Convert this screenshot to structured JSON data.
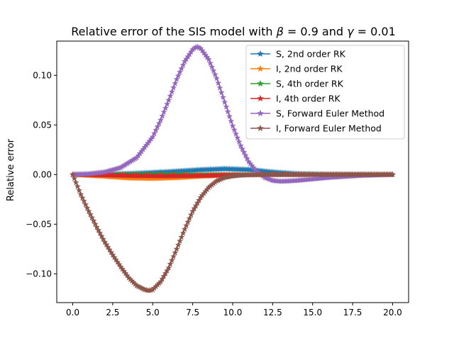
{
  "chart_data": {
    "type": "line",
    "title": "Relative error of the SIS model with β = 0.9 and  γ = 0.01",
    "title_parts": {
      "pre": "Relative error of the SIS model with ",
      "beta": "β",
      "mid": " = 0.9 and  ",
      "gamma": "γ",
      "post": " = 0.01"
    },
    "xlabel": "",
    "ylabel": "Relative error",
    "xlim": [
      -1.0,
      21.0
    ],
    "ylim": [
      -0.129,
      0.1345
    ],
    "xticks": [
      0.0,
      2.5,
      5.0,
      7.5,
      10.0,
      12.5,
      15.0,
      17.5,
      20.0
    ],
    "xtick_labels": [
      "0.0",
      "2.5",
      "5.0",
      "7.5",
      "10.0",
      "12.5",
      "15.0",
      "17.5",
      "20.0"
    ],
    "yticks": [
      -0.1,
      -0.05,
      0.0,
      0.05,
      0.1
    ],
    "ytick_labels": [
      "−0.10",
      "−0.05",
      "0.00",
      "0.05",
      "0.10"
    ],
    "grid": false,
    "legend_position": "top-right",
    "marker": "star",
    "series": [
      {
        "name": "S, 2nd order RK",
        "color": "#1f77b4",
        "x": [
          0,
          2,
          4,
          6,
          8,
          9.5,
          11,
          12.5,
          14,
          16,
          18,
          20
        ],
        "y": [
          0,
          0.0002,
          0.0012,
          0.0028,
          0.0048,
          0.0058,
          0.005,
          0.0025,
          0.0008,
          0.0002,
          0.0001,
          0
        ]
      },
      {
        "name": "I, 2nd order RK",
        "color": "#ff7f0e",
        "x": [
          0,
          2,
          3.5,
          5,
          6.5,
          8,
          9.5,
          11,
          12.5,
          14,
          16,
          18,
          20
        ],
        "y": [
          0,
          -0.0018,
          -0.0035,
          -0.004,
          -0.0032,
          -0.0018,
          -0.0008,
          -0.0003,
          -0.0001,
          0,
          0,
          0,
          0
        ]
      },
      {
        "name": "S, 4th order RK",
        "color": "#2ca02c",
        "x": [
          0,
          5,
          10,
          15,
          20
        ],
        "y": [
          0,
          0,
          0,
          0,
          0
        ]
      },
      {
        "name": "I, 4th order RK",
        "color": "#d62728",
        "x": [
          0,
          2,
          4,
          6,
          8,
          10,
          12,
          14,
          16,
          18,
          20
        ],
        "y": [
          0,
          -0.0005,
          -0.0012,
          -0.0014,
          -0.001,
          -0.0004,
          -0.0001,
          0,
          0,
          0,
          0
        ]
      },
      {
        "name": "S, Forward Euler Method",
        "color": "#9467bd",
        "x": [
          0,
          1,
          2,
          3,
          4,
          5,
          5.5,
          6,
          6.5,
          7,
          7.5,
          7.75,
          8,
          8.5,
          9,
          9.5,
          10,
          10.5,
          11,
          11.5,
          12,
          12.5,
          13,
          13.5,
          14,
          15,
          16,
          17,
          18,
          19,
          20
        ],
        "y": [
          0,
          0.0007,
          0.0025,
          0.007,
          0.017,
          0.038,
          0.055,
          0.075,
          0.096,
          0.114,
          0.126,
          0.129,
          0.127,
          0.116,
          0.097,
          0.073,
          0.049,
          0.029,
          0.013,
          0.003,
          -0.003,
          -0.006,
          -0.0068,
          -0.0065,
          -0.006,
          -0.0045,
          -0.003,
          -0.002,
          -0.001,
          -0.0005,
          0
        ]
      },
      {
        "name": "I, Forward Euler Method",
        "color": "#8c564b",
        "x": [
          0,
          0.25,
          0.5,
          1,
          1.5,
          2,
          2.5,
          3,
          3.5,
          4,
          4.5,
          4.75,
          5,
          5.5,
          6,
          6.5,
          7,
          7.5,
          8,
          8.5,
          9,
          9.5,
          10,
          10.5,
          11,
          12,
          13,
          14,
          16,
          18,
          20
        ],
        "y": [
          0,
          -0.01,
          -0.02,
          -0.037,
          -0.053,
          -0.068,
          -0.081,
          -0.093,
          -0.104,
          -0.112,
          -0.116,
          -0.117,
          -0.116,
          -0.108,
          -0.094,
          -0.075,
          -0.055,
          -0.037,
          -0.023,
          -0.013,
          -0.0065,
          -0.003,
          -0.0015,
          -0.0007,
          -0.0003,
          0,
          0,
          0,
          0,
          0,
          0
        ]
      }
    ]
  }
}
